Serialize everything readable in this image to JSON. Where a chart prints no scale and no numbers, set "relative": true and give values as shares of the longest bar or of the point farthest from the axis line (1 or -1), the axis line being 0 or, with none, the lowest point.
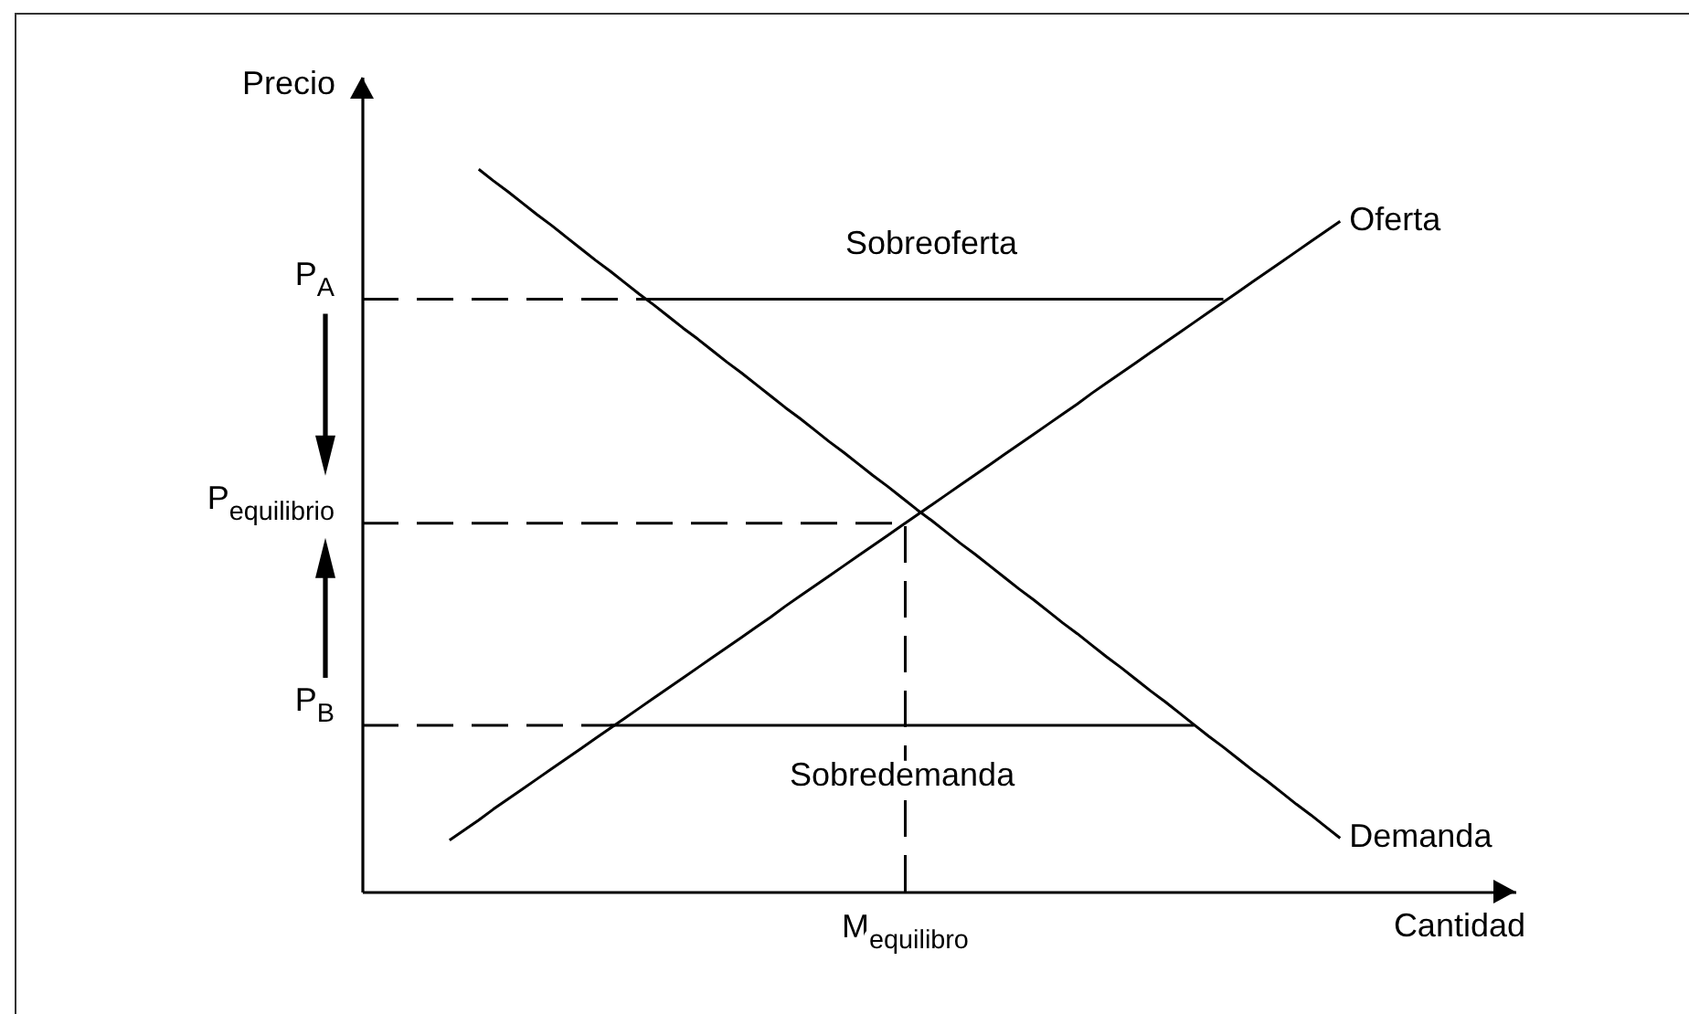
{
  "chart_data": {
    "type": "line",
    "relative": true,
    "xlabel": "Cantidad",
    "ylabel": "Precio",
    "categories": [
      null,
      null,
      null,
      null,
      null,
      null,
      null,
      null,
      null,
      null,
      null,
      null,
      null,
      null,
      null,
      null,
      null,
      null,
      null,
      null,
      null,
      null,
      null,
      null,
      null,
      null,
      null,
      null,
      null,
      null,
      null,
      null,
      null,
      null,
      null,
      null,
      null,
      null,
      null,
      null,
      null,
      null,
      null,
      null,
      null,
      null,
      null,
      null,
      null,
      null,
      null,
      null,
      null,
      null,
      null,
      null,
      null,
      null,
      null,
      null,
      null,
      null,
      null,
      null,
      null,
      null,
      null,
      null,
      null,
      null,
      null,
      null,
      null,
      null,
      null,
      null,
      null,
      null,
      null,
      null
    ],
    "series": [
      {
        "name": "Oferta",
        "color": "#000000",
        "values": [
          null,
          null,
          null,
          null,
          null,
          null,
          0.071,
          0.085,
          0.099,
          0.114,
          0.128,
          0.142,
          0.156,
          0.17,
          0.184,
          0.198,
          0.212,
          0.226,
          0.24,
          0.254,
          0.268,
          0.282,
          0.296,
          0.31,
          0.324,
          0.338,
          0.352,
          0.366,
          0.38,
          0.395,
          0.409,
          0.423,
          0.437,
          0.451,
          0.465,
          0.479,
          0.493,
          0.507,
          0.521,
          0.535,
          0.549,
          0.563,
          0.577,
          0.591,
          0.605,
          0.619,
          0.633,
          0.647,
          0.661,
          0.675,
          0.69,
          0.704,
          0.718,
          0.732,
          0.746,
          0.76,
          0.774,
          0.788,
          0.802,
          0.816,
          0.83,
          0.844,
          0.858,
          0.872,
          0.886,
          0.9,
          0.914,
          0.928,
          null,
          null,
          null,
          null,
          null,
          null,
          null,
          null,
          null,
          null,
          null,
          null
        ]
      },
      {
        "name": "Demanda",
        "color": "#000000",
        "values": [
          null,
          null,
          null,
          null,
          null,
          null,
          null,
          null,
          1,
          0.984,
          0.969,
          0.953,
          0.937,
          0.922,
          0.906,
          0.89,
          0.874,
          0.859,
          0.843,
          0.827,
          0.812,
          0.796,
          0.78,
          0.765,
          0.749,
          0.733,
          0.718,
          0.702,
          0.686,
          0.67,
          0.655,
          0.639,
          0.623,
          0.608,
          0.592,
          0.576,
          0.561,
          0.545,
          0.529,
          0.514,
          0.498,
          0.482,
          0.467,
          0.451,
          0.435,
          0.419,
          0.404,
          0.388,
          0.372,
          0.357,
          0.341,
          0.325,
          0.31,
          0.294,
          0.278,
          0.263,
          0.247,
          0.231,
          0.215,
          0.2,
          0.184,
          0.168,
          0.153,
          0.137,
          0.121,
          0.106,
          0.09,
          0.074,
          null,
          null,
          null,
          null,
          null,
          null,
          null,
          null,
          null,
          null,
          null,
          null
        ]
      },
      {
        "color": "#000000",
        "values": [
          null,
          null,
          null,
          null,
          null,
          null,
          null,
          null,
          null,
          null,
          null,
          null,
          null,
          null,
          null,
          null,
          null,
          null,
          null,
          0.82,
          0.82,
          0.82,
          0.82,
          0.82,
          0.82,
          0.82,
          0.82,
          0.82,
          0.82,
          0.82,
          0.82,
          0.82,
          0.82,
          0.82,
          0.82,
          0.82,
          0.82,
          0.82,
          0.82,
          0.82,
          0.82,
          0.82,
          0.82,
          0.82,
          0.82,
          0.82,
          0.82,
          0.82,
          0.82,
          0.82,
          0.82,
          0.82,
          0.82,
          0.82,
          0.82,
          0.82,
          0.82,
          0.82,
          0.82,
          0.82,
          null,
          null,
          null,
          null,
          null,
          null,
          null,
          null,
          null,
          null,
          null,
          null,
          null,
          null,
          null,
          null,
          null,
          null,
          null,
          null
        ]
      },
      {
        "color": "#000000",
        "values": [
          null,
          null,
          null,
          null,
          null,
          null,
          null,
          null,
          null,
          null,
          null,
          null,
          null,
          null,
          null,
          null,
          null,
          0.23,
          0.23,
          0.23,
          0.23,
          0.23,
          0.23,
          0.23,
          0.23,
          0.23,
          0.23,
          0.23,
          0.23,
          0.23,
          0.23,
          0.23,
          0.23,
          0.23,
          0.23,
          0.23,
          0.23,
          0.23,
          0.23,
          0.23,
          0.23,
          0.23,
          0.23,
          0.23,
          0.23,
          0.23,
          0.23,
          0.23,
          0.23,
          0.23,
          0.23,
          0.23,
          0.23,
          0.23,
          0.23,
          0.23,
          0.23,
          0.23,
          null,
          null,
          null,
          null,
          null,
          null,
          null,
          null,
          null,
          null,
          null,
          null,
          null,
          null,
          null,
          null,
          null,
          null,
          null,
          null,
          null,
          null
        ]
      }
    ],
    "ref_lines": [
      {
        "axis": "y",
        "value": 0.82,
        "label": "P$_{A}$",
        "line_style": "dashed"
      },
      {
        "axis": "y",
        "value": 0.51,
        "label": "P$_{equilibrio}$",
        "line_style": "dashed"
      },
      {
        "axis": "y",
        "value": 0.23,
        "label": "P$_{B}$",
        "line_style": "dashed"
      }
    ],
    "annotations": [
      "Sobreoferta",
      "Sobredemanda",
      "M$_{equilibro}$"
    ]
  }
}
